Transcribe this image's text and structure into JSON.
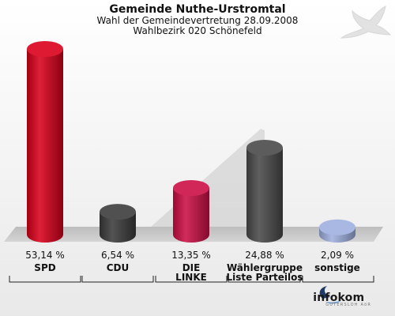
{
  "header": {
    "title": "Gemeinde Nuthe-Urstromtal",
    "subtitle": "Wahl der Gemeindevertretung 28.09.2008",
    "subtitle2": "Wahlbezirk 020 Schönefeld"
  },
  "logo": {
    "name": "infokom",
    "tagline": "GUTERSLOH AöR"
  },
  "colors": {
    "SPD": "#d9001b",
    "CDU": "#3c3c3c",
    "DIE LINKE": "#cc0f45",
    "Wählergruppe Liste Parteilos": "#4a4a4a",
    "sonstige": "#9fb0df"
  },
  "chart_data": {
    "type": "bar",
    "categories": [
      "SPD",
      "CDU",
      "DIE LINKE",
      "Wählergruppe Liste Parteilos",
      "sonstige"
    ],
    "category_lines": [
      [
        "SPD"
      ],
      [
        "CDU"
      ],
      [
        "DIE",
        "LINKE"
      ],
      [
        "Wählergruppe",
        "Liste Parteilos"
      ],
      [
        "sonstige"
      ]
    ],
    "values": [
      53.14,
      6.54,
      13.35,
      24.88,
      2.09
    ],
    "value_labels": [
      "53,14 %",
      "6,54 %",
      "13,35 %",
      "24,88 %",
      "2,09 %"
    ],
    "ylim": [
      0,
      53.14
    ],
    "grid": false
  }
}
